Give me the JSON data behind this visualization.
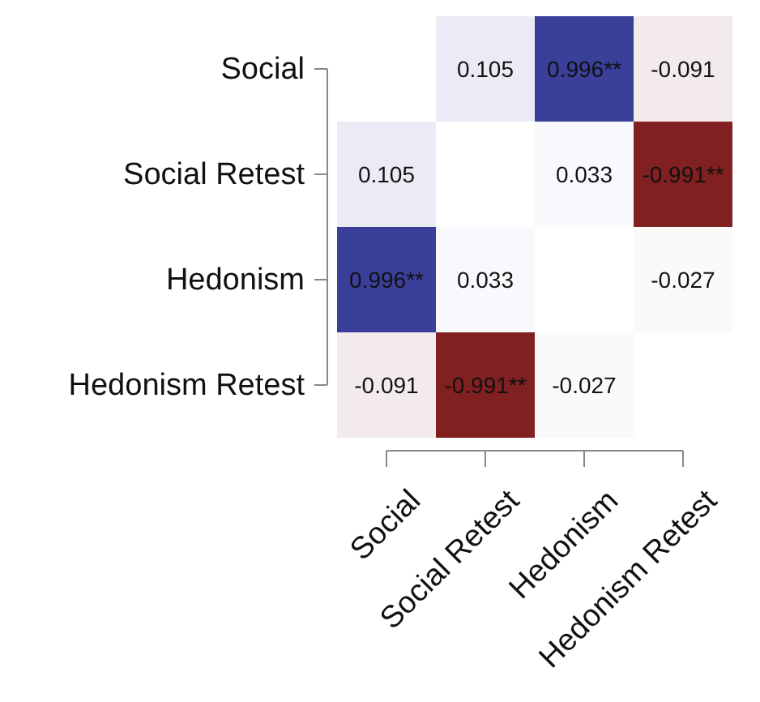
{
  "chart_data": {
    "type": "heatmap",
    "categories": [
      "Social",
      "Social Retest",
      "Hedonism",
      "Hedonism Retest"
    ],
    "y_categories": [
      "Social",
      "Social Retest",
      "Hedonism",
      "Hedonism Retest"
    ],
    "cells": [
      [
        null,
        0.105,
        0.996,
        -0.091
      ],
      [
        0.105,
        null,
        0.033,
        -0.991
      ],
      [
        0.996,
        0.033,
        null,
        -0.027
      ],
      [
        -0.091,
        -0.991,
        -0.027,
        null
      ]
    ],
    "cell_labels": [
      [
        null,
        "0.105",
        "0.996**",
        "-0.091"
      ],
      [
        "0.105",
        null,
        "0.033",
        "-0.991**"
      ],
      [
        "0.996**",
        "0.033",
        null,
        "-0.027"
      ],
      [
        "-0.091",
        "-0.991**",
        "-0.027",
        null
      ]
    ]
  }
}
